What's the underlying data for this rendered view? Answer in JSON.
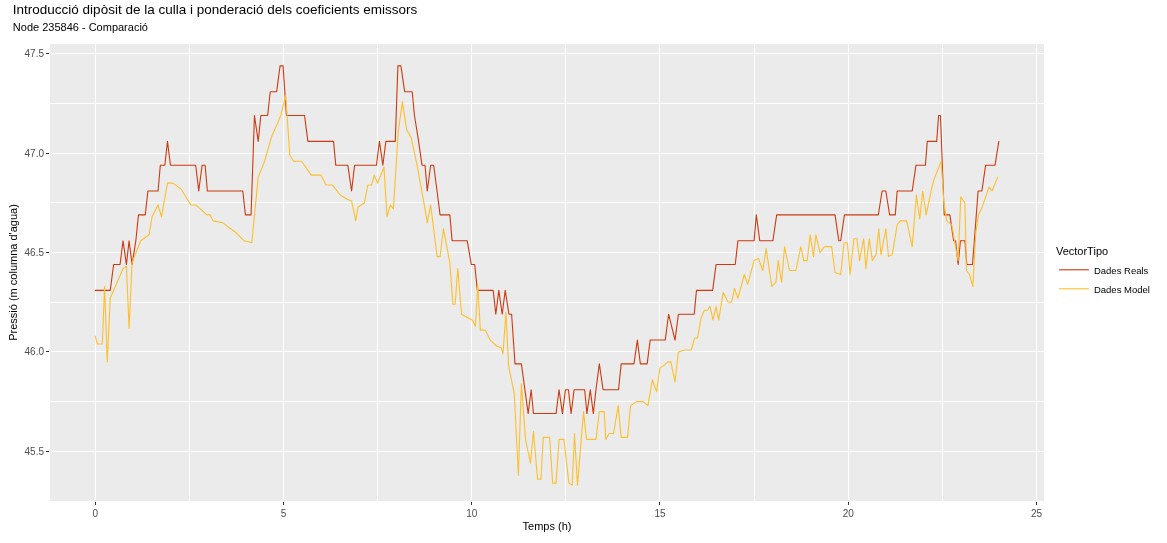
{
  "chart_data": {
    "type": "line",
    "title": "Introducció dipòsit de la culla i ponderació dels coeficients emissors",
    "subtitle": "Node 235846 - Comparació",
    "xlabel": "Temps (h)",
    "ylabel": "Pressió (m columna d'agua)",
    "legend_title": "VectorTipo",
    "xlim": [
      -1.2,
      25.2
    ],
    "xticks": [
      0,
      5,
      10,
      15,
      20,
      25
    ],
    "ylim": [
      45.25,
      47.55
    ],
    "yticks": [
      {
        "value": 45.5,
        "label": "45.5"
      },
      {
        "value": 46.0,
        "label": "46.0"
      },
      {
        "value": 46.5,
        "label": "46.5"
      },
      {
        "value": 47.0,
        "label": "47.0"
      },
      {
        "value": 47.5,
        "label": "47.5"
      }
    ],
    "grid": true,
    "legend": "right",
    "line_style": "solid",
    "series": [
      {
        "name": "Dades Reals",
        "color": "#cc3a10",
        "x": [
          0,
          0.4,
          0.49,
          0.66,
          0.74,
          0.83,
          0.9,
          0.98,
          1.08,
          1.15,
          1.33,
          1.4,
          1.67,
          1.73,
          1.85,
          1.92,
          2.0,
          2.67,
          2.75,
          2.84,
          2.92,
          2.98,
          3.92,
          3.99,
          4.14,
          4.23,
          4.33,
          4.4,
          4.58,
          4.65,
          4.82,
          4.91,
          4.99,
          5.08,
          5.56,
          5.65,
          6.33,
          6.39,
          6.71,
          6.81,
          6.89,
          7.47,
          7.55,
          7.64,
          7.72,
          7.97,
          8.04,
          8.12,
          8.22,
          8.42,
          8.48,
          8.59,
          8.68,
          8.76,
          8.82,
          8.91,
          8.99,
          9.08,
          9.16,
          9.42,
          9.48,
          9.88,
          9.99,
          10.08,
          10.15,
          10.57,
          10.64,
          10.72,
          10.81,
          10.89,
          10.99,
          11.06,
          11.15,
          11.32,
          11.5,
          11.58,
          11.64,
          12.24,
          12.32,
          12.41,
          12.49,
          12.57,
          12.64,
          12.72,
          13.0,
          13.06,
          13.15,
          13.23,
          13.3,
          13.39,
          13.49,
          13.9,
          13.97,
          14.31,
          14.4,
          14.48,
          14.66,
          14.74,
          15.14,
          15.23,
          15.4,
          15.49,
          15.91,
          15.97,
          16.4,
          16.49,
          17.0,
          17.07,
          17.5,
          17.56,
          17.65,
          18.0,
          18.1,
          19.65,
          19.75,
          19.8,
          19.9,
          20.8,
          20.9,
          21.0,
          21.1,
          21.25,
          21.3,
          21.7,
          21.8,
          22.05,
          22.1,
          22.35,
          22.4,
          22.45,
          22.55,
          22.7,
          22.8,
          22.85,
          22.92,
          22.98,
          23.1,
          23.15,
          23.3,
          23.35,
          23.45,
          23.55,
          23.65,
          23.9,
          24.0
        ],
        "values": [
          46.31,
          46.31,
          46.44,
          46.44,
          46.56,
          46.44,
          46.56,
          46.44,
          46.56,
          46.69,
          46.69,
          46.81,
          46.81,
          46.94,
          46.94,
          47.06,
          46.94,
          46.94,
          46.81,
          46.94,
          46.94,
          46.81,
          46.81,
          46.69,
          46.69,
          47.19,
          47.06,
          47.19,
          47.19,
          47.31,
          47.31,
          47.44,
          47.44,
          47.19,
          47.19,
          47.06,
          47.06,
          46.94,
          46.94,
          46.81,
          46.94,
          46.94,
          47.06,
          46.94,
          47.06,
          47.06,
          47.44,
          47.44,
          47.31,
          47.31,
          47.19,
          47.06,
          46.94,
          46.94,
          46.81,
          46.94,
          46.94,
          46.81,
          46.69,
          46.69,
          46.56,
          46.56,
          46.44,
          46.44,
          46.31,
          46.31,
          46.19,
          46.31,
          46.19,
          46.31,
          46.19,
          46.19,
          45.94,
          45.94,
          45.69,
          45.81,
          45.69,
          45.69,
          45.81,
          45.69,
          45.81,
          45.81,
          45.69,
          45.81,
          45.81,
          45.69,
          45.81,
          45.69,
          45.81,
          45.94,
          45.81,
          45.81,
          45.94,
          45.94,
          46.06,
          45.94,
          45.94,
          46.06,
          46.06,
          46.19,
          46.06,
          46.19,
          46.19,
          46.31,
          46.31,
          46.44,
          46.44,
          46.56,
          46.56,
          46.69,
          46.56,
          46.56,
          46.69,
          46.69,
          46.56,
          46.56,
          46.69,
          46.69,
          46.81,
          46.81,
          46.69,
          46.69,
          46.81,
          46.81,
          46.94,
          46.94,
          47.06,
          47.06,
          47.19,
          47.19,
          46.69,
          46.69,
          46.56,
          46.56,
          46.44,
          46.56,
          46.56,
          46.44,
          46.44,
          46.56,
          46.81,
          46.81,
          46.94,
          46.94,
          47.06
        ]
      },
      {
        "name": "Dades Model",
        "color": "#fdbf2d",
        "x": [
          0,
          0.06,
          0.19,
          0.25,
          0.32,
          0.4,
          0.74,
          0.83,
          0.9,
          0.98,
          1.21,
          1.43,
          1.51,
          1.67,
          1.76,
          1.92,
          2.06,
          2.28,
          2.54,
          2.67,
          2.97,
          3.05,
          3.13,
          3.39,
          3.74,
          3.95,
          4.16,
          4.33,
          4.5,
          4.68,
          4.93,
          5.06,
          5.17,
          5.27,
          5.48,
          5.74,
          6.0,
          6.13,
          6.3,
          6.51,
          6.68,
          6.81,
          6.92,
          6.98,
          7.15,
          7.24,
          7.34,
          7.41,
          7.5,
          7.67,
          7.75,
          7.84,
          7.92,
          8.05,
          8.16,
          8.27,
          8.39,
          8.56,
          8.74,
          8.82,
          8.91,
          9.08,
          9.16,
          9.25,
          9.42,
          9.5,
          9.56,
          9.63,
          9.73,
          10.02,
          10.1,
          10.16,
          10.23,
          10.36,
          10.49,
          10.66,
          10.79,
          10.83,
          10.91,
          10.98,
          11.13,
          11.24,
          11.32,
          11.43,
          11.56,
          11.64,
          11.75,
          11.84,
          11.9,
          12.07,
          12.15,
          12.24,
          12.32,
          12.45,
          12.58,
          12.67,
          12.73,
          12.81,
          12.97,
          13.05,
          13.3,
          13.39,
          13.52,
          13.56,
          13.65,
          13.77,
          13.89,
          13.97,
          14.14,
          14.22,
          14.38,
          14.55,
          14.68,
          14.8,
          14.91,
          15.0,
          15.09,
          15.21,
          15.29,
          15.4,
          15.49,
          15.66,
          15.83,
          15.92,
          16.0,
          16.09,
          16.18,
          16.26,
          16.33,
          16.41,
          16.49,
          16.56,
          16.68,
          16.81,
          16.9,
          16.98,
          17.07,
          17.24,
          17.33,
          17.5,
          17.62,
          17.73,
          17.82,
          17.97,
          18.08,
          18.14,
          18.23,
          18.31,
          18.44,
          18.61,
          18.74,
          18.82,
          18.91,
          18.99,
          19.08,
          19.14,
          19.25,
          19.37,
          19.56,
          19.65,
          19.8,
          19.89,
          19.98,
          20.05,
          20.15,
          20.23,
          20.3,
          20.41,
          20.47,
          20.56,
          20.64,
          20.74,
          20.81,
          20.87,
          21.0,
          21.07,
          21.17,
          21.3,
          21.38,
          21.55,
          21.7,
          21.81,
          21.9,
          21.98,
          22.07,
          22.2,
          22.28,
          22.47,
          22.54,
          22.62,
          22.75,
          22.84,
          22.92,
          22.99,
          23.1,
          23.14,
          23.22,
          23.31,
          23.39,
          23.46,
          23.56,
          23.74,
          23.82,
          23.97
        ],
        "values": [
          46.08,
          46.04,
          46.04,
          46.33,
          45.95,
          46.27,
          46.42,
          46.43,
          46.12,
          46.45,
          46.56,
          46.59,
          46.68,
          46.74,
          46.68,
          46.85,
          46.85,
          46.82,
          46.74,
          46.74,
          46.69,
          46.69,
          46.66,
          46.65,
          46.6,
          46.56,
          46.55,
          46.88,
          46.96,
          47.08,
          47.19,
          47.29,
          46.99,
          46.96,
          46.96,
          46.89,
          46.89,
          46.84,
          46.84,
          46.79,
          46.77,
          46.76,
          46.66,
          46.73,
          46.75,
          46.84,
          46.84,
          46.89,
          46.85,
          46.93,
          46.68,
          46.74,
          46.72,
          47.11,
          47.26,
          47.12,
          47.08,
          46.93,
          46.74,
          46.65,
          46.74,
          46.48,
          46.48,
          46.62,
          46.45,
          46.24,
          46.24,
          46.42,
          46.19,
          46.16,
          46.13,
          46.34,
          46.11,
          46.11,
          46.06,
          46.03,
          46.02,
          45.99,
          46.2,
          45.93,
          45.79,
          45.38,
          45.84,
          45.56,
          45.44,
          45.6,
          45.36,
          45.36,
          45.57,
          45.57,
          45.34,
          45.34,
          45.56,
          45.56,
          45.34,
          45.33,
          45.59,
          45.33,
          45.7,
          45.56,
          45.56,
          45.7,
          45.7,
          45.56,
          45.59,
          45.59,
          45.73,
          45.57,
          45.57,
          45.73,
          45.75,
          45.75,
          45.73,
          45.86,
          45.8,
          45.92,
          45.93,
          45.95,
          45.95,
          45.85,
          46.0,
          46.01,
          46.01,
          46.07,
          46.07,
          46.17,
          46.21,
          46.21,
          46.23,
          46.16,
          46.23,
          46.16,
          46.3,
          46.25,
          46.25,
          46.32,
          46.27,
          46.39,
          46.34,
          46.46,
          46.47,
          46.41,
          46.52,
          46.33,
          46.35,
          46.46,
          46.35,
          46.53,
          46.41,
          46.41,
          46.53,
          46.46,
          46.46,
          46.59,
          46.48,
          46.59,
          46.5,
          46.53,
          46.53,
          46.4,
          46.39,
          46.55,
          46.55,
          46.39,
          46.57,
          46.57,
          46.46,
          46.57,
          46.42,
          46.57,
          46.46,
          46.49,
          46.62,
          46.49,
          46.62,
          46.48,
          46.49,
          46.64,
          46.66,
          46.66,
          46.53,
          46.79,
          46.67,
          46.81,
          46.69,
          46.81,
          46.87,
          46.96,
          46.75,
          46.66,
          46.64,
          46.54,
          46.46,
          46.78,
          46.75,
          46.41,
          46.39,
          46.33,
          46.6,
          46.69,
          46.73,
          46.83,
          46.81,
          46.88
        ]
      }
    ]
  }
}
